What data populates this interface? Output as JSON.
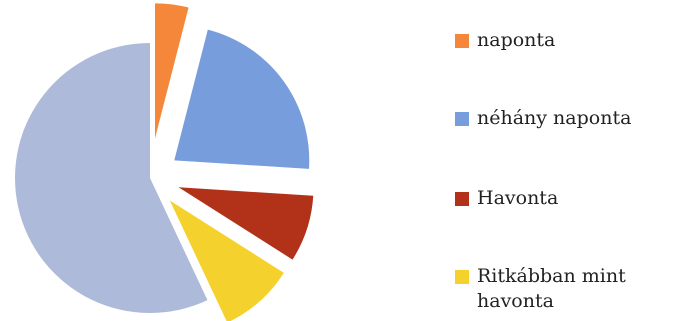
{
  "chart_data": {
    "type": "pie",
    "title": "",
    "exploded": true,
    "slices": [
      {
        "label": "naponta",
        "value": 4,
        "color": "#F5873B"
      },
      {
        "label": "néhány naponta",
        "value": 22,
        "color": "#779DDC"
      },
      {
        "label": "Havonta",
        "value": 8,
        "color": "#B23119"
      },
      {
        "label": "Ritkábban mint havonta",
        "value": 9,
        "color": "#F5D12E"
      },
      {
        "label": "",
        "value": 57,
        "color": "#AEBAD9"
      }
    ],
    "legend": {
      "placement": "right",
      "entries": [
        {
          "label": "naponta",
          "color": "#F5873B"
        },
        {
          "label": "néhány naponta",
          "color": "#779DDC"
        },
        {
          "label": "Havonta",
          "color": "#B23119"
        },
        {
          "label": "Ritkábban mint havonta",
          "color": "#F5D12E"
        }
      ]
    }
  }
}
